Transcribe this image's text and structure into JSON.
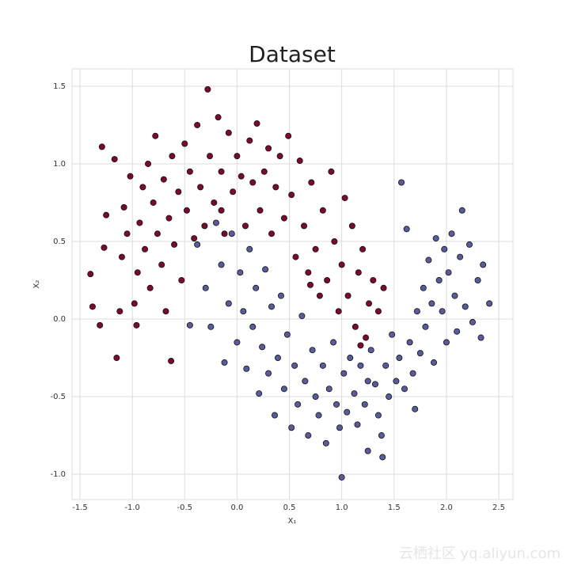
{
  "chart_data": {
    "type": "scatter",
    "title": "Dataset",
    "xlabel": "X₁",
    "ylabel": "X₂",
    "watermark": "云栖社区 yq.aliyun.com",
    "xlim": [
      -1.576,
      2.636
    ],
    "ylim": [
      -1.163,
      1.612
    ],
    "xticks": [
      -1.5,
      {
        "value": -1,
        "label": "-1.0"
      },
      -0.5,
      {
        "value": 0,
        "label": "0.0"
      },
      0.5,
      {
        "value": 1,
        "label": "1.0"
      },
      1.5,
      {
        "value": 2,
        "label": "2.0"
      },
      2.5
    ],
    "yticks": [
      {
        "value": -1,
        "label": "-1.0"
      },
      -0.5,
      {
        "value": 0,
        "label": "0.0"
      },
      0.5,
      {
        "value": 1,
        "label": "1.0"
      },
      1.5
    ],
    "grid": true,
    "series": [
      {
        "color": "#7a0a2e",
        "x": [
          -1.4,
          -1.38,
          -1.31,
          -1.27,
          -1.25,
          -1.29,
          -1.17,
          -1.15,
          -1.12,
          -1.1,
          -1.08,
          -1.05,
          -1.02,
          -0.98,
          -0.96,
          -0.95,
          -0.93,
          -0.9,
          -0.88,
          -0.85,
          -0.83,
          -0.8,
          -0.78,
          -0.76,
          -0.72,
          -0.7,
          -0.68,
          -0.65,
          -0.63,
          -0.62,
          -0.6,
          -0.56,
          -0.53,
          -0.5,
          -0.48,
          -0.45,
          -0.41,
          -0.38,
          -0.35,
          -0.31,
          -0.28,
          -0.26,
          -0.22,
          -0.18,
          -0.15,
          -0.12,
          -0.08,
          -0.04,
          0.0,
          0.04,
          0.08,
          0.12,
          0.15,
          0.19,
          0.22,
          0.26,
          0.3,
          0.33,
          0.37,
          0.41,
          0.45,
          0.49,
          0.52,
          0.56,
          0.6,
          0.64,
          0.68,
          0.71,
          0.75,
          0.79,
          0.82,
          0.86,
          0.9,
          0.93,
          0.97,
          1.0,
          1.03,
          1.06,
          1.1,
          1.13,
          1.16,
          1.2,
          1.23,
          1.26,
          1.3,
          1.35,
          1.4,
          0.7,
          1.18,
          -0.15
        ],
        "values": [
          0.29,
          0.08,
          -0.04,
          0.46,
          0.67,
          1.11,
          1.03,
          -0.25,
          0.05,
          0.4,
          0.72,
          0.55,
          0.92,
          0.1,
          -0.04,
          0.3,
          0.62,
          0.85,
          0.45,
          1.0,
          0.2,
          0.75,
          1.18,
          0.55,
          0.35,
          0.9,
          0.05,
          0.65,
          -0.27,
          1.05,
          0.48,
          0.82,
          0.25,
          1.13,
          0.7,
          0.95,
          0.52,
          1.25,
          0.85,
          0.6,
          1.48,
          1.05,
          0.75,
          1.3,
          0.95,
          0.55,
          1.2,
          0.82,
          1.05,
          0.92,
          0.6,
          1.15,
          0.88,
          1.26,
          0.7,
          0.95,
          1.1,
          0.55,
          0.85,
          1.05,
          0.65,
          1.18,
          0.8,
          0.4,
          1.02,
          0.6,
          0.3,
          0.88,
          0.45,
          0.15,
          0.7,
          0.25,
          0.95,
          0.5,
          0.05,
          0.35,
          0.78,
          0.15,
          0.6,
          -0.05,
          0.3,
          0.45,
          -0.12,
          0.1,
          0.25,
          0.05,
          0.2,
          0.22,
          -0.17,
          0.7
        ]
      },
      {
        "color": "#5b5b9c",
        "x": [
          -0.45,
          -0.38,
          -0.3,
          -0.25,
          -0.2,
          -0.15,
          -0.12,
          -0.08,
          -0.05,
          0.0,
          0.03,
          0.06,
          0.09,
          0.12,
          0.15,
          0.18,
          0.21,
          0.24,
          0.27,
          0.3,
          0.33,
          0.36,
          0.39,
          0.42,
          0.45,
          0.48,
          0.52,
          0.55,
          0.58,
          0.62,
          0.65,
          0.68,
          0.72,
          0.75,
          0.78,
          0.82,
          0.85,
          0.88,
          0.92,
          0.95,
          0.98,
          1.0,
          1.02,
          1.05,
          1.08,
          1.12,
          1.15,
          1.18,
          1.22,
          1.25,
          1.28,
          1.32,
          1.35,
          1.38,
          1.39,
          1.42,
          1.45,
          1.48,
          1.52,
          1.55,
          1.57,
          1.6,
          1.62,
          1.65,
          1.68,
          1.72,
          1.75,
          1.78,
          1.8,
          1.83,
          1.86,
          1.88,
          1.9,
          1.93,
          1.96,
          1.98,
          2.0,
          2.02,
          2.05,
          2.08,
          2.1,
          2.13,
          2.18,
          2.22,
          2.25,
          2.3,
          2.33,
          2.35,
          2.41,
          2.15,
          1.7,
          1.25
        ],
        "values": [
          -0.04,
          0.48,
          0.2,
          -0.05,
          0.62,
          0.35,
          -0.28,
          0.1,
          0.55,
          -0.15,
          0.3,
          0.05,
          -0.32,
          0.45,
          -0.05,
          0.2,
          -0.48,
          -0.18,
          0.32,
          -0.35,
          0.08,
          -0.62,
          -0.25,
          0.15,
          -0.45,
          -0.1,
          -0.7,
          -0.3,
          -0.55,
          0.02,
          -0.4,
          -0.75,
          -0.2,
          -0.5,
          -0.62,
          -0.3,
          -0.8,
          -0.45,
          -0.15,
          -0.55,
          -0.7,
          -1.02,
          -0.35,
          -0.6,
          -0.25,
          -0.48,
          -0.68,
          -0.3,
          -0.55,
          -0.85,
          -0.2,
          -0.42,
          -0.62,
          -0.75,
          -0.89,
          -0.3,
          -0.5,
          -0.1,
          -0.4,
          -0.25,
          0.88,
          -0.45,
          0.58,
          -0.15,
          -0.35,
          0.05,
          -0.22,
          0.2,
          -0.05,
          0.38,
          0.1,
          -0.28,
          0.52,
          0.25,
          0.05,
          0.45,
          -0.15,
          0.3,
          0.55,
          0.15,
          -0.08,
          0.4,
          0.08,
          0.48,
          -0.02,
          0.25,
          -0.12,
          0.35,
          0.1,
          0.7,
          -0.58,
          -0.4
        ]
      }
    ]
  }
}
